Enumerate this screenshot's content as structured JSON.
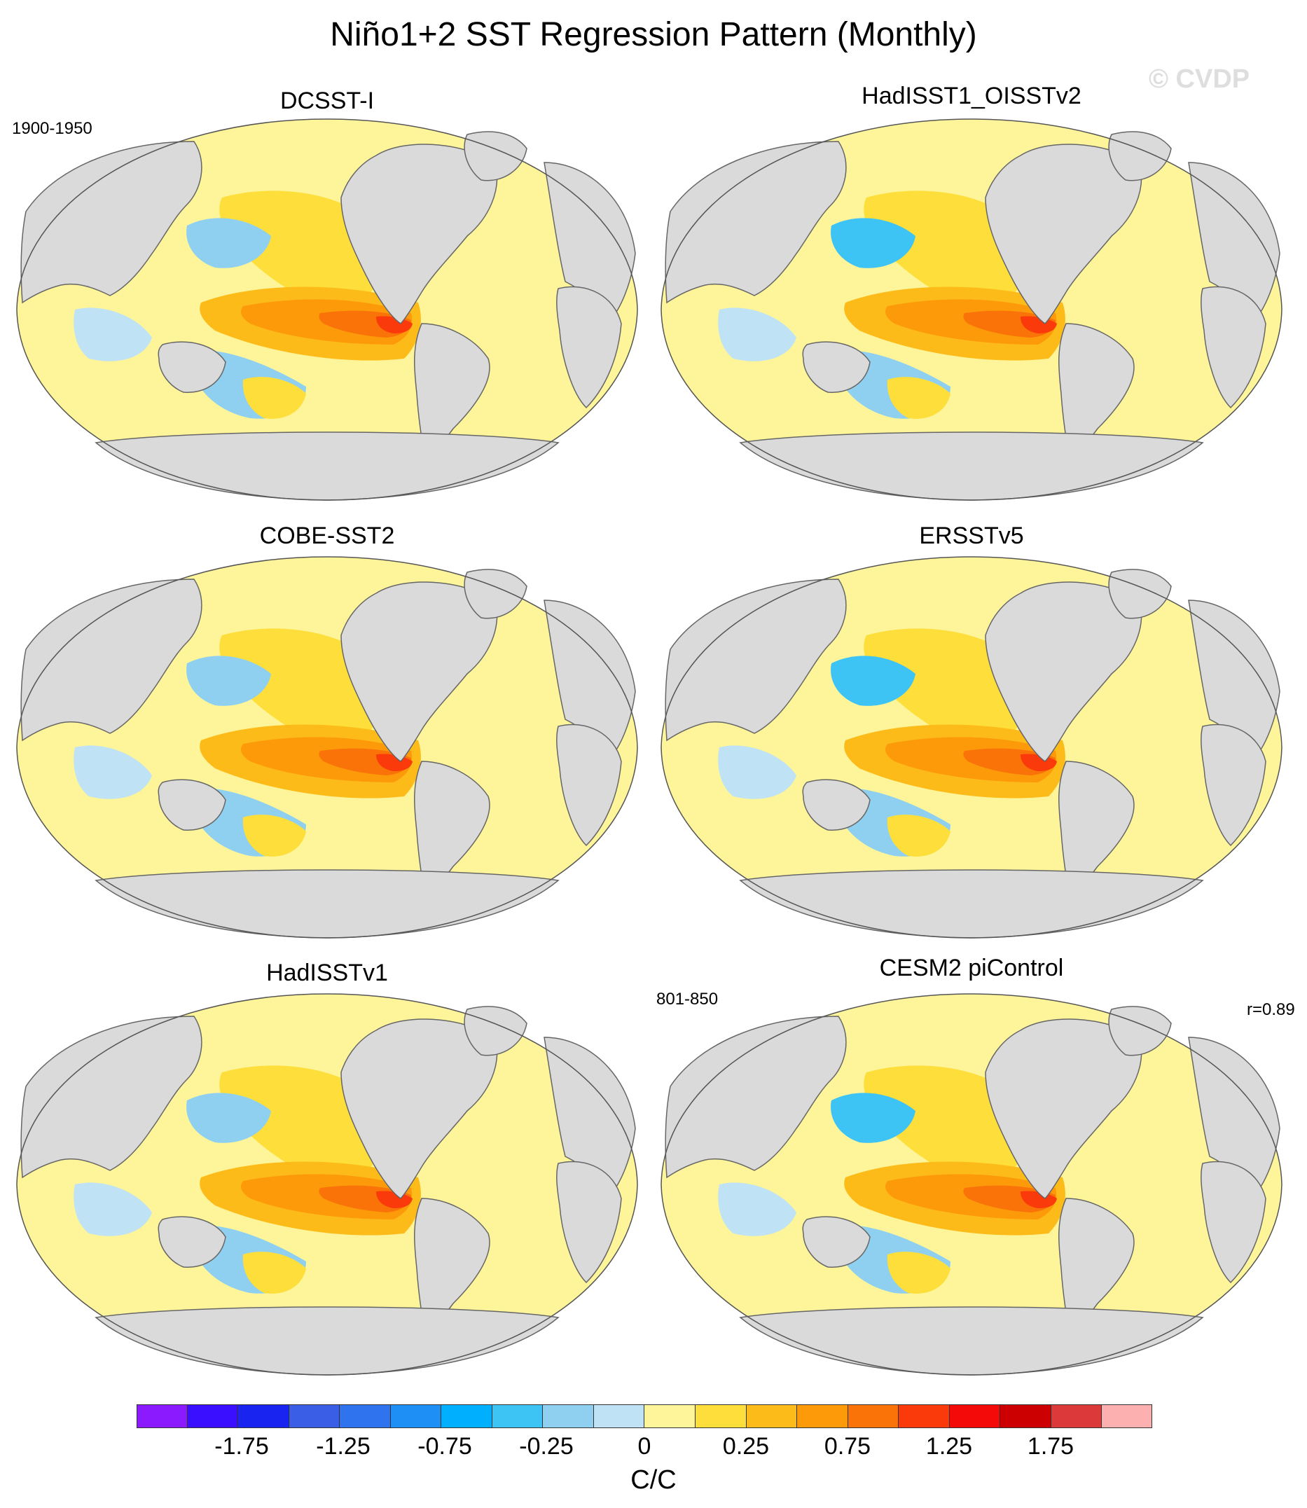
{
  "title": "Niño1+2 SST Regression Pattern (Monthly)",
  "watermark": "© CVDP",
  "panels": [
    {
      "title": "DCSST-I",
      "left_label": "1900-1950",
      "right_label": ""
    },
    {
      "title": "HadISST1_OISSTv2",
      "left_label": "",
      "right_label": ""
    },
    {
      "title": "COBE-SST2",
      "left_label": "",
      "right_label": ""
    },
    {
      "title": "ERSSTv5",
      "left_label": "",
      "right_label": ""
    },
    {
      "title": "HadISSTv1",
      "left_label": "",
      "right_label": ""
    },
    {
      "title": "CESM2 piControl",
      "left_label": "801-850",
      "right_label": "r=0.89"
    }
  ],
  "colorbar": {
    "units": "C/C",
    "tick_labels": [
      "-1.75",
      "-1.25",
      "-0.75",
      "-0.25",
      "0",
      "0.25",
      "0.75",
      "1.25",
      "1.75"
    ],
    "colors": [
      "#8c1aff",
      "#3a0fff",
      "#1a24f0",
      "#3b5ee6",
      "#2f74ee",
      "#1e8ff5",
      "#00b0ff",
      "#3ec3f5",
      "#8fd0f0",
      "#bfe3f5",
      "#fef59a",
      "#fede3a",
      "#fdbb1a",
      "#fd9a0a",
      "#fa7308",
      "#fa3a0a",
      "#f50a0a",
      "#cc0000",
      "#dc3a3a",
      "#fdb0b0"
    ]
  },
  "map_colors": {
    "land": "#dadada",
    "coast": "#666666",
    "neutral_warm": "#fef59a",
    "neutral_cool": "#bfe3f5",
    "cool1": "#8fd0f0",
    "cool2": "#3ec3f5",
    "cool3": "#00b0ff",
    "warm1": "#fede3a",
    "warm2": "#fdbb1a",
    "warm3": "#fd9a0a",
    "warm4": "#fa7308",
    "warm5": "#fa3a0a",
    "warm6": "#cc0000"
  }
}
